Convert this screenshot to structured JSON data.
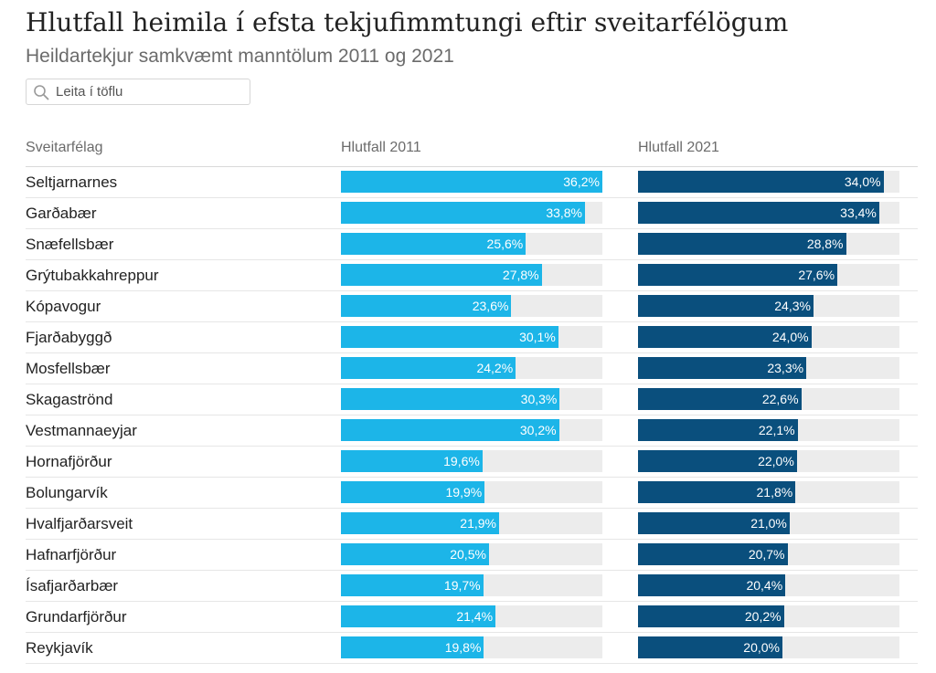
{
  "title": "Hlutfall heimila í efsta tekjufimmtungi eftir sveitarfélögum",
  "subtitle": "Heildartekjur samkvæmt manntölum 2011 og 2021",
  "search": {
    "placeholder": "Leita í töflu"
  },
  "columns": {
    "name": "Sveitarfélag",
    "col1": "Hlutfall 2011",
    "col2": "Hlutfall 2021"
  },
  "colors": {
    "bar_2011": "#1cb5e8",
    "bar_2021": "#0a4f7d",
    "track": "#ececec"
  },
  "chart_data": {
    "type": "table",
    "xlim": [
      0,
      40
    ],
    "series": [
      {
        "name": "Hlutfall 2011",
        "values": [
          36.2,
          33.8,
          25.6,
          27.8,
          23.6,
          30.1,
          24.2,
          30.3,
          30.2,
          19.6,
          19.9,
          21.9,
          20.5,
          19.7,
          21.4,
          19.8
        ]
      },
      {
        "name": "Hlutfall 2021",
        "values": [
          34.0,
          33.4,
          28.8,
          27.6,
          24.3,
          24.0,
          23.3,
          22.6,
          22.1,
          22.0,
          21.8,
          21.0,
          20.7,
          20.4,
          20.2,
          20.0
        ]
      }
    ],
    "categories": [
      "Seltjarnarnes",
      "Garðabær",
      "Snæfellsbær",
      "Grýtubakkahreppur",
      "Kópavogur",
      "Fjarðabyggð",
      "Mosfellsbær",
      "Skagaströnd",
      "Vestmannaeyjar",
      "Hornafjörður",
      "Bolungarvík",
      "Hvalfjarðarsveit",
      "Hafnarfjörður",
      "Ísafjarðarbær",
      "Grundarfjörður",
      "Reykjavík"
    ],
    "labels_2011": [
      "36,2%",
      "33,8%",
      "25,6%",
      "27,8%",
      "23,6%",
      "30,1%",
      "24,2%",
      "30,3%",
      "30,2%",
      "19,6%",
      "19,9%",
      "21,9%",
      "20,5%",
      "19,7%",
      "21,4%",
      "19,8%"
    ],
    "labels_2021": [
      "34,0%",
      "33,4%",
      "28,8%",
      "27,6%",
      "24,3%",
      "24,0%",
      "23,3%",
      "22,6%",
      "22,1%",
      "22,0%",
      "21,8%",
      "21,0%",
      "20,7%",
      "20,4%",
      "20,2%",
      "20,0%"
    ]
  }
}
